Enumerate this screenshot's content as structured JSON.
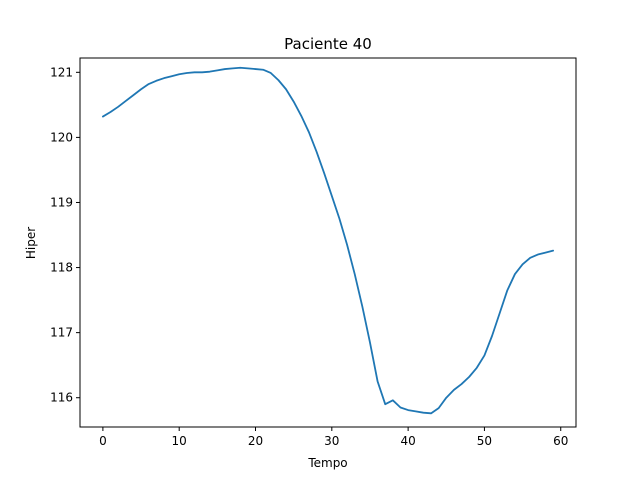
{
  "chart_data": {
    "type": "line",
    "title": "Paciente 40",
    "xlabel": "Tempo",
    "ylabel": "Hiper",
    "xlim": [
      -3,
      62
    ],
    "ylim": [
      115.55,
      121.22
    ],
    "xticks": [
      0,
      10,
      20,
      30,
      40,
      50,
      60
    ],
    "yticks": [
      116,
      117,
      118,
      119,
      120,
      121
    ],
    "grid": false,
    "legend": "none",
    "series": [
      {
        "color": "#1f77b4",
        "x": [
          0,
          1,
          2,
          3,
          4,
          5,
          6,
          7,
          8,
          9,
          10,
          11,
          12,
          13,
          14,
          15,
          16,
          17,
          18,
          19,
          20,
          21,
          22,
          23,
          24,
          25,
          26,
          27,
          28,
          29,
          30,
          31,
          32,
          33,
          34,
          35,
          36,
          37,
          38,
          39,
          40,
          41,
          42,
          43,
          44,
          45,
          46,
          47,
          48,
          49,
          50,
          51,
          52,
          53,
          54,
          55,
          56,
          57,
          58,
          59
        ],
        "values": [
          120.32,
          120.39,
          120.47,
          120.56,
          120.65,
          120.74,
          120.82,
          120.87,
          120.91,
          120.94,
          120.97,
          120.99,
          121.0,
          121.0,
          121.01,
          121.03,
          121.05,
          121.06,
          121.07,
          121.06,
          121.05,
          121.04,
          120.99,
          120.88,
          120.74,
          120.55,
          120.33,
          120.08,
          119.78,
          119.45,
          119.1,
          118.75,
          118.35,
          117.9,
          117.4,
          116.85,
          116.25,
          115.9,
          115.96,
          115.85,
          115.81,
          115.79,
          115.77,
          115.76,
          115.84,
          116.0,
          116.12,
          116.21,
          116.32,
          116.46,
          116.65,
          116.95,
          117.3,
          117.65,
          117.9,
          118.05,
          118.15,
          118.2,
          118.23,
          118.26
        ]
      }
    ]
  }
}
